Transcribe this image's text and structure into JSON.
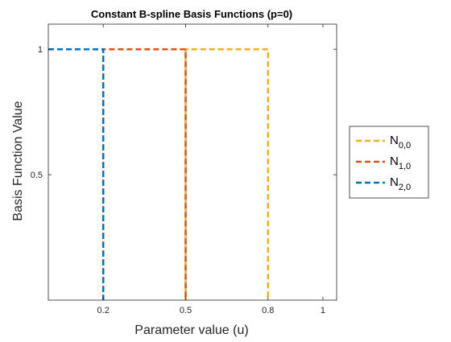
{
  "chart_data": {
    "type": "line",
    "title": "Constant B-spline Basis Functions (p=0)",
    "xlabel": "Parameter value (u)",
    "ylabel": "Basis Function Value",
    "xlim": [
      0,
      1.05
    ],
    "ylim": [
      0,
      1.1
    ],
    "xticks": [
      {
        "value": 0.2,
        "label": "0.2"
      },
      {
        "value": 0.5,
        "label": "0.5"
      },
      {
        "value": 0.8,
        "label": "0.8"
      },
      {
        "value": 1,
        "label": "1"
      }
    ],
    "yticks": [
      {
        "value": 0.5,
        "label": "0.5"
      },
      {
        "value": 1,
        "label": "1"
      }
    ],
    "grid": false,
    "legend_position": "outside-right",
    "series": [
      {
        "name": "N",
        "subscript": "0,0",
        "color": "#EDB120",
        "line_style": "dashed",
        "x": [
          0.5,
          0.5,
          0.8,
          0.8
        ],
        "y": [
          0,
          1,
          1,
          0
        ]
      },
      {
        "name": "N",
        "subscript": "1,0",
        "color": "#D95319",
        "line_style": "dashed",
        "x": [
          0.2,
          0.2,
          0.5,
          0.5
        ],
        "y": [
          0,
          1,
          1,
          0
        ]
      },
      {
        "name": "N",
        "subscript": "2,0",
        "color": "#0072BD",
        "line_style": "dashed",
        "x": [
          0,
          0.2,
          0.2
        ],
        "y": [
          1,
          1,
          0
        ]
      }
    ]
  }
}
